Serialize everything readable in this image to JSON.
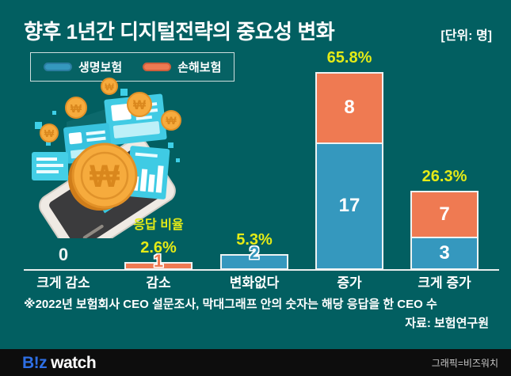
{
  "header": {
    "title": "향후 1년간 디지털전략의 중요성 변화",
    "unit_label": "[단위: 명]"
  },
  "legend": {
    "items": [
      {
        "label": "생명보험",
        "color": "#3598be"
      },
      {
        "label": "손해보험",
        "color": "#ef7a52"
      }
    ],
    "position": "top-left"
  },
  "chart_data": {
    "type": "bar",
    "stacked": true,
    "categories": [
      "크게 감소",
      "감소",
      "변화없다",
      "증가",
      "크게 증가"
    ],
    "series": [
      {
        "name": "생명보험",
        "color": "#3598be",
        "values": [
          0,
          0,
          2,
          17,
          3
        ]
      },
      {
        "name": "손해보험",
        "color": "#ef7a52",
        "values": [
          0,
          1,
          0,
          8,
          7
        ]
      }
    ],
    "totals": [
      0,
      1,
      2,
      25,
      10
    ],
    "percent_labels": [
      "",
      "2.6%",
      "5.3%",
      "65.8%",
      "26.3%"
    ],
    "ratio_caption": "응답 비율",
    "ratio_caption_category_index": 1,
    "zero_label": "0",
    "value_label_color": "#ffffff",
    "percent_color": "#e5eb16",
    "grid": false,
    "y_axis_visible": false,
    "value_labels_inside_bars": true
  },
  "footnote": {
    "note": "※2022년 보험회사 CEO 설문조사, 막대그래프 안의 숫자는 해당 응답을 한 CEO 수",
    "source": "자료: 보험연구원"
  },
  "footer": {
    "logo_primary": "B!z",
    "logo_secondary": "watch",
    "credit": "그래픽=비즈워치"
  },
  "colors": {
    "background": "#025f61",
    "axis": "#e9efef",
    "bar_border": "#eef3f3",
    "footer_background": "#0d0d0d",
    "logo_blue": "#2e6fe4",
    "credit_gray": "#c9c9c9"
  },
  "illustration": {
    "name": "smartphone-digital-finance-illustration",
    "icons": [
      "smartphone-icon",
      "won-coin-icon",
      "document-card-icon",
      "bar-chart-card-icon",
      "pixel-squares"
    ]
  }
}
